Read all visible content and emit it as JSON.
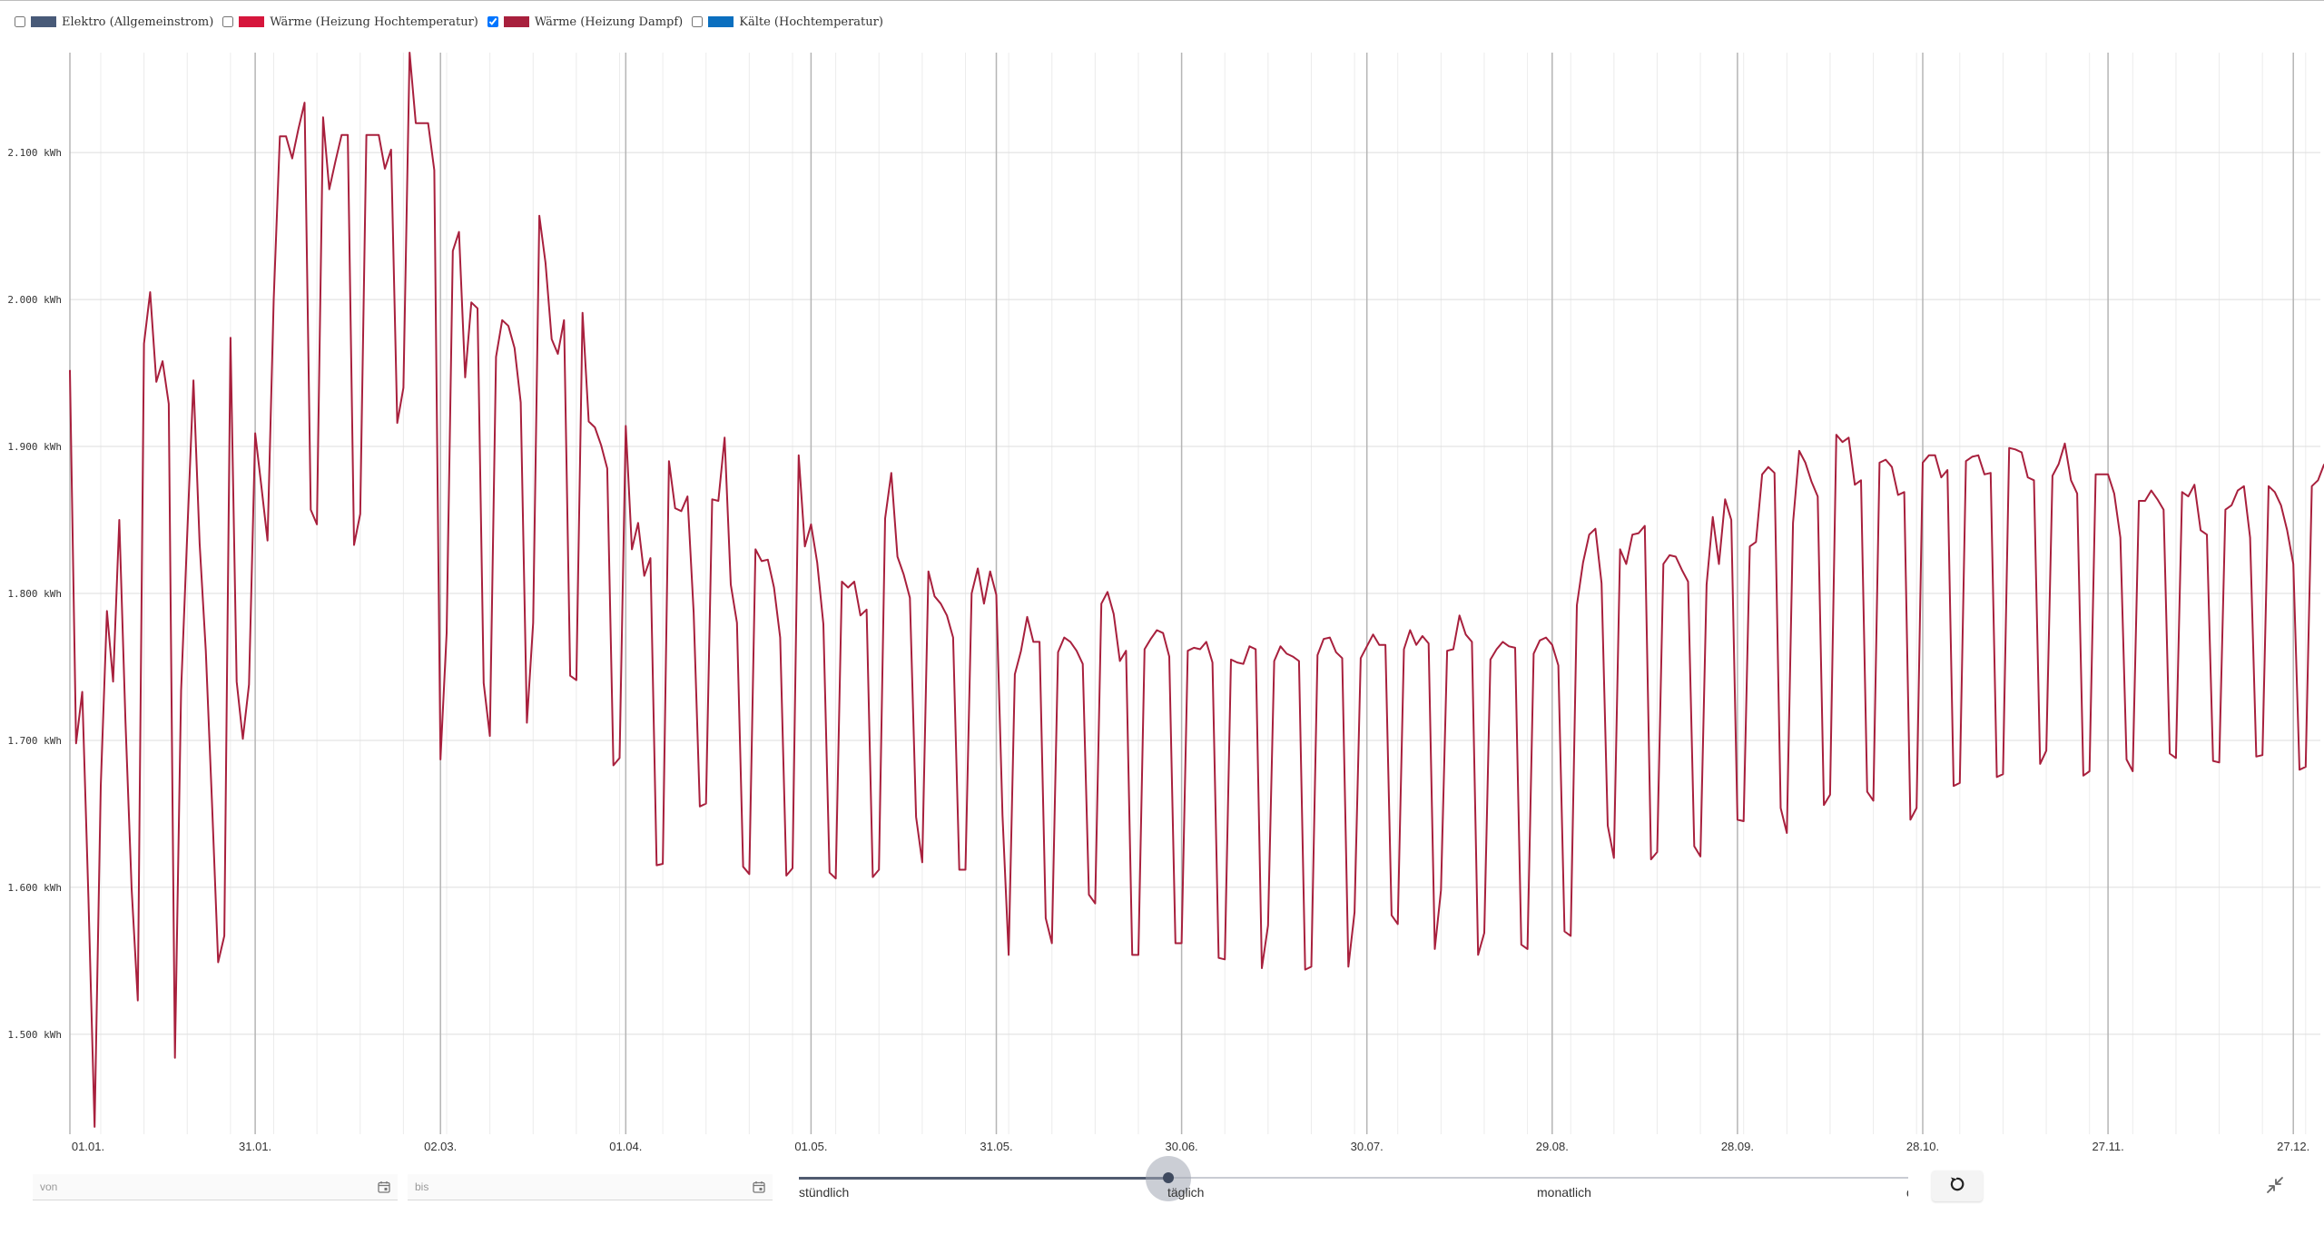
{
  "legend": [
    {
      "label": "Elektro (Allgemeinstrom)",
      "color": "#485a78",
      "checked": false
    },
    {
      "label": "Wärme (Heizung Hochtemperatur)",
      "color": "#d6163c",
      "checked": false
    },
    {
      "label": "Wärme (Heizung Dampf)",
      "color": "#a8203d",
      "checked": true
    },
    {
      "label": "Kälte (Hochtemperatur)",
      "color": "#0b6fbf",
      "checked": false
    }
  ],
  "filters": {
    "from_placeholder": "von",
    "to_placeholder": "bis"
  },
  "resolution": {
    "options": [
      "stündlich",
      "täglich",
      "monatlich",
      "quartalsweise"
    ],
    "selected": "täglich",
    "selected_fraction": 0.333
  },
  "icons": {
    "calendar": "calendar-icon",
    "reset": "reset-icon",
    "collapse": "collapse-icon"
  },
  "chart_data": {
    "type": "line",
    "unit": "kWh",
    "series": [
      {
        "name": "Wärme (Heizung Dampf)",
        "color": "#a8203d",
        "x_start": "01.01.",
        "values": [
          1952,
          1698,
          1733,
          1593,
          1437,
          1669,
          1788,
          1740,
          1850,
          1713,
          1599,
          1523,
          1970,
          2005,
          1944,
          1958,
          1929,
          1484,
          1734,
          1841,
          1945,
          1834,
          1761,
          1658,
          1549,
          1567,
          1974,
          1740,
          1701,
          1738,
          1909,
          1873,
          1836,
          2000,
          2111,
          2111,
          2096,
          2116,
          2134,
          1857,
          1847,
          2124,
          2075,
          2094,
          2112,
          2112,
          1833,
          1854,
          2112,
          2112,
          2112,
          2089,
          2102,
          1916,
          1940,
          2168,
          2120,
          2120,
          2120,
          2088,
          1687,
          1773,
          2033,
          2046,
          1947,
          1998,
          1994,
          1739,
          1703,
          1961,
          1986,
          1982,
          1967,
          1930,
          1712,
          1780,
          2057,
          2025,
          1973,
          1963,
          1986,
          1744,
          1741,
          1991,
          1917,
          1913,
          1901,
          1885,
          1683,
          1688,
          1914,
          1830,
          1848,
          1812,
          1824,
          1615,
          1616,
          1890,
          1858,
          1856,
          1866,
          1787,
          1655,
          1657,
          1864,
          1863,
          1906,
          1806,
          1780,
          1614,
          1609,
          1830,
          1822,
          1823,
          1804,
          1770,
          1608,
          1613,
          1894,
          1832,
          1847,
          1821,
          1779,
          1610,
          1606,
          1808,
          1804,
          1808,
          1785,
          1789,
          1607,
          1612,
          1851,
          1882,
          1825,
          1813,
          1797,
          1648,
          1617,
          1815,
          1798,
          1793,
          1785,
          1770,
          1612,
          1612,
          1800,
          1817,
          1793,
          1815,
          1799,
          1649,
          1554,
          1745,
          1761,
          1784,
          1767,
          1767,
          1579,
          1562,
          1760,
          1770,
          1767,
          1761,
          1752,
          1595,
          1589,
          1793,
          1801,
          1786,
          1754,
          1761,
          1554,
          1554,
          1762,
          1769,
          1775,
          1773,
          1757,
          1562,
          1562,
          1761,
          1763,
          1762,
          1767,
          1753,
          1552,
          1551,
          1755,
          1753,
          1752,
          1764,
          1762,
          1545,
          1574,
          1754,
          1764,
          1759,
          1757,
          1754,
          1544,
          1546,
          1758,
          1769,
          1770,
          1760,
          1756,
          1546,
          1583,
          1756,
          1764,
          1772,
          1765,
          1765,
          1581,
          1575,
          1762,
          1775,
          1765,
          1771,
          1766,
          1558,
          1598,
          1761,
          1762,
          1785,
          1772,
          1767,
          1554,
          1569,
          1755,
          1762,
          1767,
          1764,
          1763,
          1561,
          1558,
          1759,
          1768,
          1770,
          1765,
          1751,
          1570,
          1567,
          1792,
          1821,
          1840,
          1844,
          1807,
          1642,
          1620,
          1830,
          1820,
          1840,
          1841,
          1846,
          1619,
          1624,
          1820,
          1826,
          1825,
          1816,
          1808,
          1628,
          1621,
          1806,
          1852,
          1820,
          1864,
          1850,
          1646,
          1645,
          1832,
          1835,
          1881,
          1886,
          1882,
          1654,
          1637,
          1848,
          1897,
          1889,
          1876,
          1866,
          1656,
          1663,
          1908,
          1903,
          1906,
          1874,
          1877,
          1665,
          1659,
          1889,
          1891,
          1886,
          1867,
          1869,
          1646,
          1654,
          1889,
          1894,
          1894,
          1879,
          1884,
          1669,
          1671,
          1890,
          1893,
          1894,
          1881,
          1882,
          1675,
          1677,
          1899,
          1898,
          1896,
          1879,
          1877,
          1684,
          1693,
          1880,
          1888,
          1902,
          1877,
          1868,
          1676,
          1679,
          1881,
          1881,
          1881,
          1868,
          1838,
          1687,
          1679,
          1863,
          1863,
          1870,
          1864,
          1857,
          1691,
          1688,
          1869,
          1866,
          1874,
          1843,
          1840,
          1686,
          1685,
          1857,
          1860,
          1870,
          1873,
          1838,
          1689,
          1690,
          1873,
          1869,
          1860,
          1843,
          1820,
          1680,
          1682,
          1873,
          1877,
          1888
        ]
      }
    ],
    "x_ticks": [
      "01.01.",
      "31.01.",
      "02.03.",
      "01.04.",
      "01.05.",
      "31.05.",
      "30.06.",
      "30.07.",
      "29.08.",
      "28.09.",
      "28.10.",
      "27.11.",
      "27.12."
    ],
    "x_tick_days": [
      0,
      30,
      60,
      90,
      120,
      150,
      180,
      210,
      240,
      270,
      300,
      330,
      360
    ],
    "y_ticks": [
      "1.500 kWh",
      "1.600 kWh",
      "1.700 kWh",
      "1.800 kWh",
      "1.900 kWh",
      "2.000 kWh",
      "2.100 kWh"
    ],
    "y_tick_values": [
      1500,
      1600,
      1700,
      1800,
      1900,
      2000,
      2100
    ],
    "ylim": [
      1432,
      2168
    ],
    "grid": true,
    "legend_position": "top-left"
  }
}
